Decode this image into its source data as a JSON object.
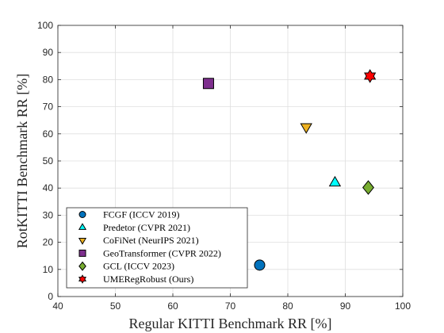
{
  "chart_data": {
    "type": "scatter",
    "title": "",
    "xlabel": "Regular KITTI Benchmark RR [%]",
    "ylabel": "RotKITTI Benchmark RR [%]",
    "xlim": [
      40,
      100
    ],
    "ylim": [
      0,
      100
    ],
    "xticks": [
      40,
      50,
      60,
      70,
      80,
      90,
      100
    ],
    "yticks": [
      0,
      10,
      20,
      30,
      40,
      50,
      60,
      70,
      80,
      90,
      100
    ],
    "grid": true,
    "legend_position": "bottom-left",
    "series": [
      {
        "name": "FCGF (ICCV 2019)",
        "marker": "circle",
        "color": "#0072BD",
        "x": 75.1,
        "y": 11.6
      },
      {
        "name": "Predetor (CVPR 2021)",
        "marker": "triangle-up",
        "color": "#00FFFF",
        "x": 88.2,
        "y": 42.0
      },
      {
        "name": "CoFiNet (NeurIPS 2021)",
        "marker": "triangle-down",
        "color": "#EDB120",
        "x": 83.2,
        "y": 62.5
      },
      {
        "name": "GeoTransformer (CVPR 2022)",
        "marker": "square",
        "color": "#7E2F8E",
        "x": 66.2,
        "y": 78.6
      },
      {
        "name": "GCL (ICCV 2023)",
        "marker": "diamond",
        "color": "#77AC30",
        "x": 94.0,
        "y": 40.2
      },
      {
        "name": "UMERegRobust (Ours)",
        "marker": "hexagram",
        "color": "#FF0000",
        "x": 94.3,
        "y": 81.3
      }
    ]
  }
}
